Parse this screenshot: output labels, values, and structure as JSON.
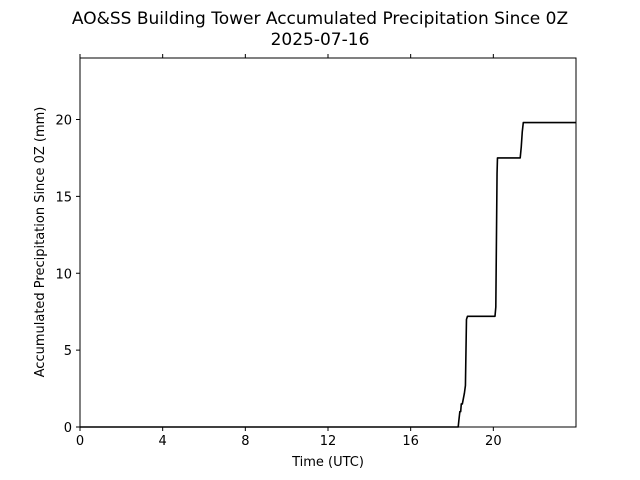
{
  "chart_data": {
    "type": "line",
    "title": "AO&SS Building Tower Accumulated Precipitation Since 0Z",
    "subtitle": "2025-07-16",
    "xlabel": "Time (UTC)",
    "ylabel": "Accumulated Precipitation Since 0Z (mm)",
    "xlim": [
      0,
      24
    ],
    "ylim": [
      0,
      24
    ],
    "x_ticks": [
      0,
      4,
      8,
      12,
      16,
      20
    ],
    "y_ticks": [
      0,
      5,
      10,
      15,
      20
    ],
    "grid": false,
    "line_color": "#000000",
    "series": [
      {
        "x": [
          0,
          18.3,
          18.33,
          18.38,
          18.42,
          18.45,
          18.5,
          18.6,
          18.65,
          18.7,
          18.75,
          18.8,
          20.0,
          20.08,
          20.12,
          20.18,
          20.2,
          21.3,
          21.35,
          21.4,
          21.45,
          24
        ],
        "y": [
          0,
          0,
          0.4,
          1.0,
          1.0,
          1.5,
          1.5,
          2.2,
          2.7,
          7.0,
          7.2,
          7.2,
          7.2,
          7.2,
          7.8,
          16.5,
          17.5,
          17.5,
          18.2,
          19.2,
          19.8,
          19.8
        ]
      }
    ]
  }
}
